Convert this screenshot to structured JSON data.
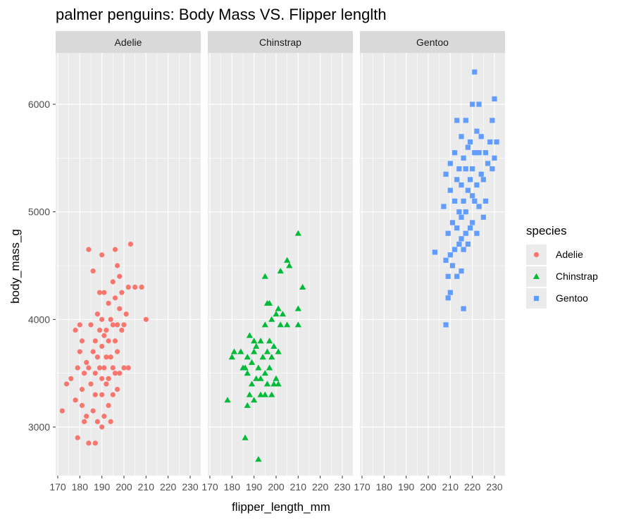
{
  "chart_data": {
    "type": "scatter",
    "title": "palmer penguins: Body Mass VS. Flipper lenglth",
    "xlabel": "flipper_length_mm",
    "ylabel": "body_mass_g",
    "xlim": [
      170,
      232
    ],
    "ylim": [
      2500,
      6500
    ],
    "x_ticks": [
      170,
      180,
      190,
      200,
      210,
      220,
      230
    ],
    "y_ticks": [
      3000,
      4000,
      5000,
      6000
    ],
    "x_tick_labels": [
      "170",
      "180",
      "190",
      "200",
      "210",
      "220",
      "230"
    ],
    "y_tick_labels": [
      "3000",
      "4000",
      "5000",
      "6000"
    ],
    "grid": true,
    "facets": [
      "Adelie",
      "Chinstrap",
      "Gentoo"
    ],
    "legend": {
      "title": "species",
      "position": "right",
      "entries": [
        {
          "label": "Adelie",
          "color": "#F8766D",
          "shape": "circle"
        },
        {
          "label": "Chinstrap",
          "color": "#00BA38",
          "shape": "triangle"
        },
        {
          "label": "Gentoo",
          "color": "#619CFF",
          "shape": "square"
        }
      ]
    },
    "series": [
      {
        "name": "Adelie",
        "color": "#F8766D",
        "shape": "circle",
        "points": [
          [
            172,
            3150
          ],
          [
            174,
            3400
          ],
          [
            176,
            3450
          ],
          [
            178,
            3250
          ],
          [
            178,
            3900
          ],
          [
            179,
            2900
          ],
          [
            179,
            3550
          ],
          [
            180,
            3700
          ],
          [
            180,
            3950
          ],
          [
            181,
            3200
          ],
          [
            181,
            3350
          ],
          [
            181,
            3800
          ],
          [
            182,
            3050
          ],
          [
            182,
            3500
          ],
          [
            183,
            3100
          ],
          [
            183,
            3600
          ],
          [
            184,
            2850
          ],
          [
            184,
            3550
          ],
          [
            184,
            4650
          ],
          [
            185,
            3400
          ],
          [
            185,
            3950
          ],
          [
            186,
            3150
          ],
          [
            186,
            3700
          ],
          [
            186,
            4450
          ],
          [
            187,
            2850
          ],
          [
            187,
            3300
          ],
          [
            187,
            3500
          ],
          [
            187,
            3800
          ],
          [
            188,
            3050
          ],
          [
            188,
            3650
          ],
          [
            188,
            4050
          ],
          [
            189,
            3550
          ],
          [
            189,
            3900
          ],
          [
            189,
            4250
          ],
          [
            190,
            3000
          ],
          [
            190,
            3300
          ],
          [
            190,
            3450
          ],
          [
            190,
            3750
          ],
          [
            190,
            4000
          ],
          [
            190,
            4600
          ],
          [
            191,
            3100
          ],
          [
            191,
            3550
          ],
          [
            191,
            3850
          ],
          [
            191,
            4250
          ],
          [
            192,
            3400
          ],
          [
            192,
            3650
          ],
          [
            192,
            3900
          ],
          [
            193,
            3200
          ],
          [
            193,
            3450
          ],
          [
            193,
            3800
          ],
          [
            193,
            4150
          ],
          [
            194,
            3050
          ],
          [
            194,
            3650
          ],
          [
            194,
            4000
          ],
          [
            195,
            3300
          ],
          [
            195,
            3550
          ],
          [
            195,
            3950
          ],
          [
            195,
            4350
          ],
          [
            196,
            3500
          ],
          [
            196,
            3800
          ],
          [
            196,
            4200
          ],
          [
            196,
            4650
          ],
          [
            197,
            3350
          ],
          [
            197,
            3700
          ],
          [
            197,
            3950
          ],
          [
            197,
            4500
          ],
          [
            198,
            3500
          ],
          [
            198,
            4100
          ],
          [
            198,
            4400
          ],
          [
            199,
            3900
          ],
          [
            199,
            4250
          ],
          [
            200,
            3550
          ],
          [
            200,
            3950
          ],
          [
            201,
            4050
          ],
          [
            202,
            3550
          ],
          [
            202,
            4300
          ],
          [
            203,
            4700
          ],
          [
            205,
            4300
          ],
          [
            208,
            4300
          ],
          [
            210,
            4000
          ]
        ]
      },
      {
        "name": "Chinstrap",
        "color": "#00BA38",
        "shape": "triangle",
        "points": [
          [
            178,
            3250
          ],
          [
            180,
            3650
          ],
          [
            181,
            3700
          ],
          [
            184,
            3700
          ],
          [
            185,
            3550
          ],
          [
            186,
            2900
          ],
          [
            186,
            3550
          ],
          [
            187,
            3200
          ],
          [
            187,
            3500
          ],
          [
            187,
            3650
          ],
          [
            188,
            3300
          ],
          [
            188,
            3850
          ],
          [
            189,
            3400
          ],
          [
            189,
            3600
          ],
          [
            190,
            3250
          ],
          [
            190,
            3700
          ],
          [
            190,
            3800
          ],
          [
            191,
            3450
          ],
          [
            191,
            3750
          ],
          [
            192,
            2700
          ],
          [
            192,
            3550
          ],
          [
            193,
            3300
          ],
          [
            193,
            3450
          ],
          [
            193,
            3800
          ],
          [
            194,
            3650
          ],
          [
            195,
            3300
          ],
          [
            195,
            3500
          ],
          [
            195,
            3950
          ],
          [
            195,
            4400
          ],
          [
            196,
            3400
          ],
          [
            196,
            3700
          ],
          [
            196,
            4150
          ],
          [
            197,
            3550
          ],
          [
            197,
            3800
          ],
          [
            197,
            4150
          ],
          [
            198,
            3300
          ],
          [
            198,
            3650
          ],
          [
            198,
            4000
          ],
          [
            199,
            3400
          ],
          [
            199,
            3750
          ],
          [
            200,
            3450
          ],
          [
            200,
            4050
          ],
          [
            201,
            3400
          ],
          [
            201,
            3700
          ],
          [
            201,
            4100
          ],
          [
            202,
            3950
          ],
          [
            202,
            4450
          ],
          [
            203,
            4050
          ],
          [
            205,
            3950
          ],
          [
            205,
            4550
          ],
          [
            206,
            4500
          ],
          [
            210,
            3950
          ],
          [
            210,
            4100
          ],
          [
            210,
            4800
          ],
          [
            212,
            4300
          ]
        ]
      },
      {
        "name": "Gentoo",
        "color": "#619CFF",
        "shape": "square",
        "points": [
          [
            203,
            4625
          ],
          [
            207,
            5050
          ],
          [
            208,
            3950
          ],
          [
            208,
            4550
          ],
          [
            208,
            5350
          ],
          [
            209,
            4200
          ],
          [
            209,
            4400
          ],
          [
            209,
            4800
          ],
          [
            210,
            4250
          ],
          [
            210,
            4600
          ],
          [
            210,
            5200
          ],
          [
            210,
            5450
          ],
          [
            211,
            4500
          ],
          [
            211,
            4900
          ],
          [
            212,
            4650
          ],
          [
            212,
            5100
          ],
          [
            212,
            5550
          ],
          [
            213,
            4400
          ],
          [
            213,
            4850
          ],
          [
            213,
            5300
          ],
          [
            213,
            5850
          ],
          [
            214,
            4700
          ],
          [
            214,
            5000
          ],
          [
            214,
            5400
          ],
          [
            215,
            4450
          ],
          [
            215,
            4750
          ],
          [
            215,
            4950
          ],
          [
            215,
            5250
          ],
          [
            215,
            5700
          ],
          [
            216,
            4100
          ],
          [
            216,
            4650
          ],
          [
            216,
            5100
          ],
          [
            216,
            5500
          ],
          [
            217,
            4800
          ],
          [
            217,
            5000
          ],
          [
            217,
            5400
          ],
          [
            217,
            5850
          ],
          [
            218,
            4700
          ],
          [
            218,
            5200
          ],
          [
            218,
            5600
          ],
          [
            219,
            4850
          ],
          [
            219,
            5300
          ],
          [
            219,
            5650
          ],
          [
            220,
            4900
          ],
          [
            220,
            5150
          ],
          [
            220,
            5400
          ],
          [
            220,
            6000
          ],
          [
            221,
            5100
          ],
          [
            221,
            5550
          ],
          [
            221,
            6300
          ],
          [
            222,
            4800
          ],
          [
            222,
            5250
          ],
          [
            222,
            5750
          ],
          [
            223,
            5050
          ],
          [
            223,
            5550
          ],
          [
            223,
            6000
          ],
          [
            224,
            5350
          ],
          [
            224,
            5700
          ],
          [
            225,
            4950
          ],
          [
            225,
            5300
          ],
          [
            226,
            5100
          ],
          [
            226,
            5550
          ],
          [
            227,
            5450
          ],
          [
            228,
            5650
          ],
          [
            229,
            5400
          ],
          [
            229,
            5850
          ],
          [
            230,
            5500
          ],
          [
            230,
            6050
          ],
          [
            231,
            5650
          ]
        ]
      }
    ]
  }
}
